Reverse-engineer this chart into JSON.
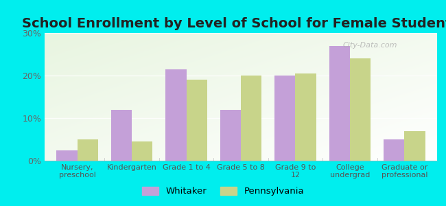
{
  "title": "School Enrollment by Level of School for Female Students",
  "categories": [
    "Nursery,\npreschool",
    "Kindergarten",
    "Grade 1 to 4",
    "Grade 5 to 8",
    "Grade 9 to\n12",
    "College\nundergrad",
    "Graduate or\nprofessional"
  ],
  "whitaker": [
    2.5,
    12.0,
    21.5,
    12.0,
    20.0,
    27.0,
    5.0
  ],
  "pennsylvania": [
    5.0,
    4.5,
    19.0,
    20.0,
    20.5,
    24.0,
    7.0
  ],
  "whitaker_color": "#c4a0d8",
  "pennsylvania_color": "#c8d48a",
  "background_color": "#00EEEE",
  "plot_bg_color": "#e8f5e0",
  "ylim": [
    0,
    30
  ],
  "yticks": [
    0,
    10,
    20,
    30
  ],
  "yticklabels": [
    "0%",
    "10%",
    "20%",
    "30%"
  ],
  "bar_width": 0.38,
  "title_fontsize": 14,
  "legend_labels": [
    "Whitaker",
    "Pennsylvania"
  ],
  "watermark": "City-Data.com",
  "grid_color": "#d0e8c0"
}
